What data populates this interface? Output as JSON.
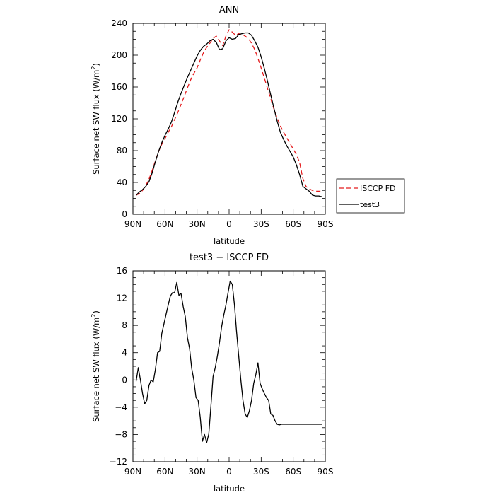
{
  "chart_data": [
    {
      "type": "line",
      "title": "ANN",
      "xlabel": "latitude",
      "ylabel": "Surface net SW flux (W/m²)",
      "ylabel_prefix": "Surface net SW flux (W/m",
      "ylabel_sup": "2",
      "ylabel_suffix": ")",
      "xlim": [
        90,
        -90
      ],
      "ylim": [
        0,
        240
      ],
      "xticks": [
        90,
        60,
        30,
        0,
        -30,
        -60,
        -90
      ],
      "xtick_labels": [
        "90N",
        "60N",
        "30N",
        "0",
        "30S",
        "60S",
        "90S"
      ],
      "yticks": [
        0,
        40,
        80,
        120,
        160,
        200,
        240
      ],
      "ytick_labels": [
        "0",
        "40",
        "80",
        "120",
        "160",
        "200",
        "240"
      ],
      "legend_position": "right",
      "series": [
        {
          "name": "ISCCP FD",
          "color": "#e41a1c",
          "dash": "dashed",
          "x": [
            87,
            84,
            81,
            78,
            75,
            72,
            69,
            66,
            63,
            60,
            57,
            54,
            51,
            48,
            45,
            42,
            39,
            36,
            33,
            30,
            27,
            24,
            21,
            18,
            15,
            12,
            9,
            6,
            3,
            0,
            -3,
            -6,
            -9,
            -12,
            -15,
            -18,
            -21,
            -24,
            -27,
            -30,
            -33,
            -36,
            -39,
            -42,
            -45,
            -48,
            -51,
            -54,
            -57,
            -60,
            -63,
            -66,
            -69,
            -72,
            -75,
            -78,
            -81,
            -84,
            -87
          ],
          "values": [
            24,
            26,
            30,
            36,
            44,
            55,
            67,
            79,
            88,
            95,
            103,
            110,
            119,
            128,
            138,
            148,
            159,
            169,
            177,
            184,
            194,
            203,
            210,
            215,
            221,
            224,
            218,
            212,
            224,
            232,
            229,
            225,
            227,
            226,
            224,
            221,
            215,
            207,
            196,
            184,
            171,
            158,
            145,
            132,
            121,
            111,
            103,
            96,
            89,
            82,
            75,
            65,
            45,
            35,
            32,
            30,
            29,
            29,
            29
          ]
        },
        {
          "name": "test3",
          "color": "#000000",
          "dash": "solid",
          "x": [
            87,
            84,
            81,
            78,
            75,
            72,
            69,
            66,
            63,
            60,
            57,
            54,
            51,
            48,
            45,
            42,
            39,
            36,
            33,
            30,
            27,
            24,
            21,
            18,
            15,
            12,
            9,
            6,
            3,
            0,
            -3,
            -6,
            -9,
            -12,
            -15,
            -18,
            -21,
            -24,
            -27,
            -30,
            -33,
            -36,
            -39,
            -42,
            -45,
            -48,
            -51,
            -54,
            -57,
            -60,
            -63,
            -66,
            -69,
            -72,
            -75,
            -78,
            -81,
            -84,
            -87
          ],
          "values": [
            24,
            28,
            31,
            35,
            41,
            52,
            66,
            79,
            90,
            99,
            107,
            116,
            128,
            141,
            152,
            162,
            172,
            181,
            190,
            199,
            206,
            211,
            214,
            218,
            220,
            216,
            207,
            208,
            218,
            222,
            220,
            221,
            226,
            227,
            228,
            228,
            225,
            218,
            210,
            198,
            183,
            167,
            150,
            133,
            117,
            103,
            94,
            86,
            79,
            72,
            62,
            50,
            35,
            32,
            29,
            24,
            23,
            23,
            22
          ]
        }
      ]
    },
    {
      "type": "line",
      "title": "test3 − ISCCP FD",
      "xlabel": "latitude",
      "ylabel": "Surface net SW flux (W/m²)",
      "ylabel_prefix": "Surface net SW flux (W/m",
      "ylabel_sup": "2",
      "ylabel_suffix": ")",
      "xlim": [
        90,
        -90
      ],
      "ylim": [
        -12,
        16
      ],
      "xticks": [
        90,
        60,
        30,
        0,
        -30,
        -60,
        -90
      ],
      "xtick_labels": [
        "90N",
        "60N",
        "30N",
        "0",
        "30S",
        "60S",
        "90S"
      ],
      "yticks": [
        -12,
        -8,
        -4,
        0,
        4,
        8,
        12,
        16
      ],
      "ytick_labels": [
        "−12",
        "−8",
        "−4",
        "0",
        "4",
        "8",
        "12",
        "16"
      ],
      "series": [
        {
          "color": "#000000",
          "dash": "solid",
          "x": [
            87,
            85,
            83,
            81,
            79,
            77,
            75,
            73,
            71,
            69,
            67,
            65,
            63,
            61,
            59,
            57,
            55,
            53,
            51,
            49,
            47,
            45,
            43,
            41,
            39,
            37,
            35,
            33,
            31,
            29,
            27,
            25,
            23,
            21,
            19,
            17,
            15,
            13,
            11,
            9,
            7,
            5,
            3,
            1,
            -1,
            -3,
            -5,
            -7,
            -9,
            -11,
            -13,
            -15,
            -17,
            -19,
            -21,
            -23,
            -25,
            -27,
            -29,
            -31,
            -33,
            -35,
            -37,
            -39,
            -41,
            -43,
            -45,
            -47,
            -49,
            -51,
            -53,
            -55,
            -57,
            -59,
            -61,
            -63,
            -65,
            -67,
            -69,
            -71,
            -73,
            -75,
            -77,
            -79,
            -81,
            -83,
            -85,
            -87
          ],
          "values": [
            -0.2,
            1.8,
            0.0,
            -2.0,
            -3.5,
            -3.0,
            -0.8,
            0.0,
            -0.3,
            1.5,
            4.0,
            4.2,
            6.8,
            8.2,
            9.6,
            11.0,
            12.3,
            12.8,
            12.8,
            14.3,
            12.4,
            12.7,
            10.8,
            9.3,
            6.2,
            4.6,
            1.7,
            0.0,
            -2.6,
            -3.0,
            -5.5,
            -9.0,
            -8.0,
            -9.2,
            -7.9,
            -3.8,
            0.5,
            1.8,
            3.5,
            5.5,
            7.8,
            9.5,
            11.0,
            12.8,
            14.5,
            14.0,
            11.0,
            7.0,
            3.5,
            0.0,
            -3.0,
            -5.0,
            -5.5,
            -4.5,
            -3.0,
            -0.5,
            0.8,
            2.5,
            -0.5,
            -1.3,
            -2.0,
            -2.6,
            -3.0,
            -5.0,
            -5.2,
            -6.0,
            -6.5,
            -6.6,
            -6.5,
            -6.5,
            -6.5,
            -6.5,
            -6.5,
            -6.5,
            -6.5,
            -6.5,
            -6.5,
            -6.5,
            -6.5,
            -6.5,
            -6.5,
            -6.5,
            -6.5,
            -6.5,
            -6.5,
            -6.5,
            -6.5,
            -6.5
          ]
        }
      ]
    }
  ]
}
